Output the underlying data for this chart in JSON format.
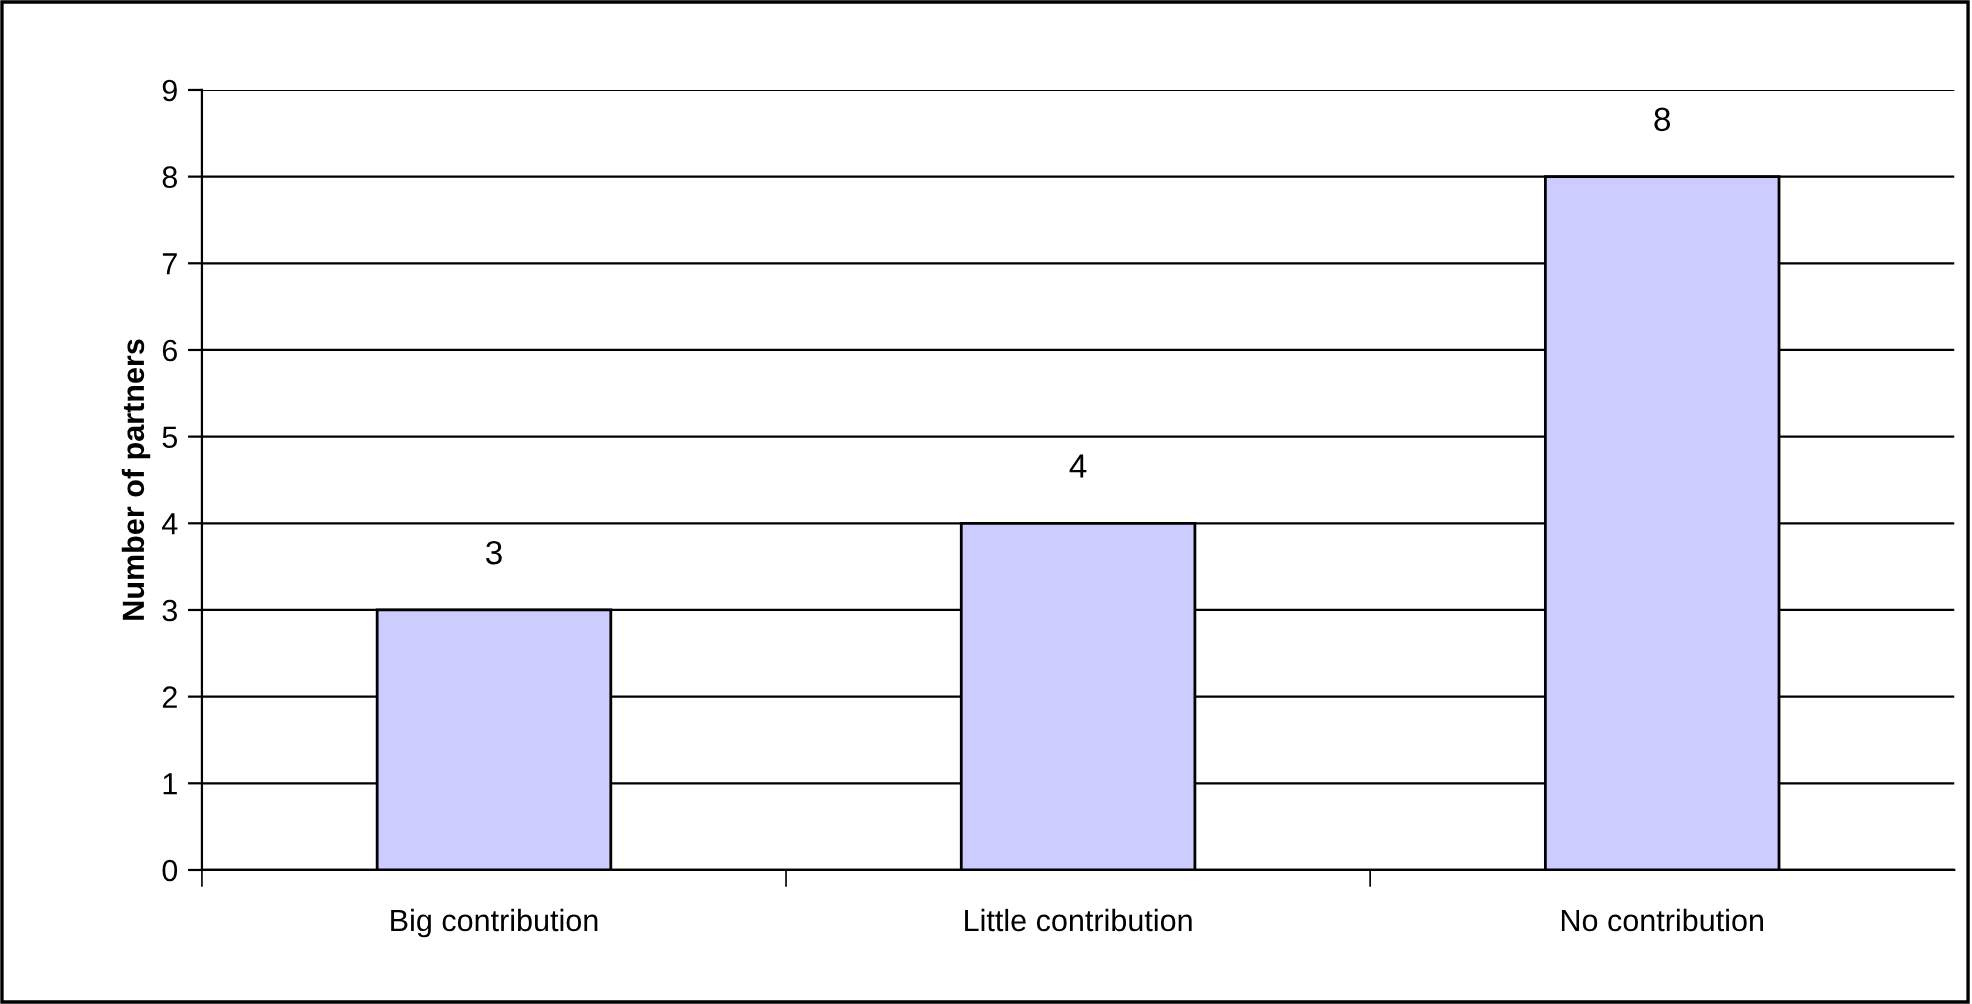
{
  "chart_data": {
    "type": "bar",
    "ylabel": "Number of partners",
    "categories": [
      "Big contribution",
      "Little contribution",
      "No contribution"
    ],
    "values": [
      3,
      4,
      8
    ],
    "color": "#ccccff",
    "ylim": [
      0,
      9
    ],
    "yticks": [
      0,
      1,
      2,
      3,
      4,
      5,
      6,
      7,
      8,
      9
    ],
    "grid": "y",
    "data_labels": true
  }
}
